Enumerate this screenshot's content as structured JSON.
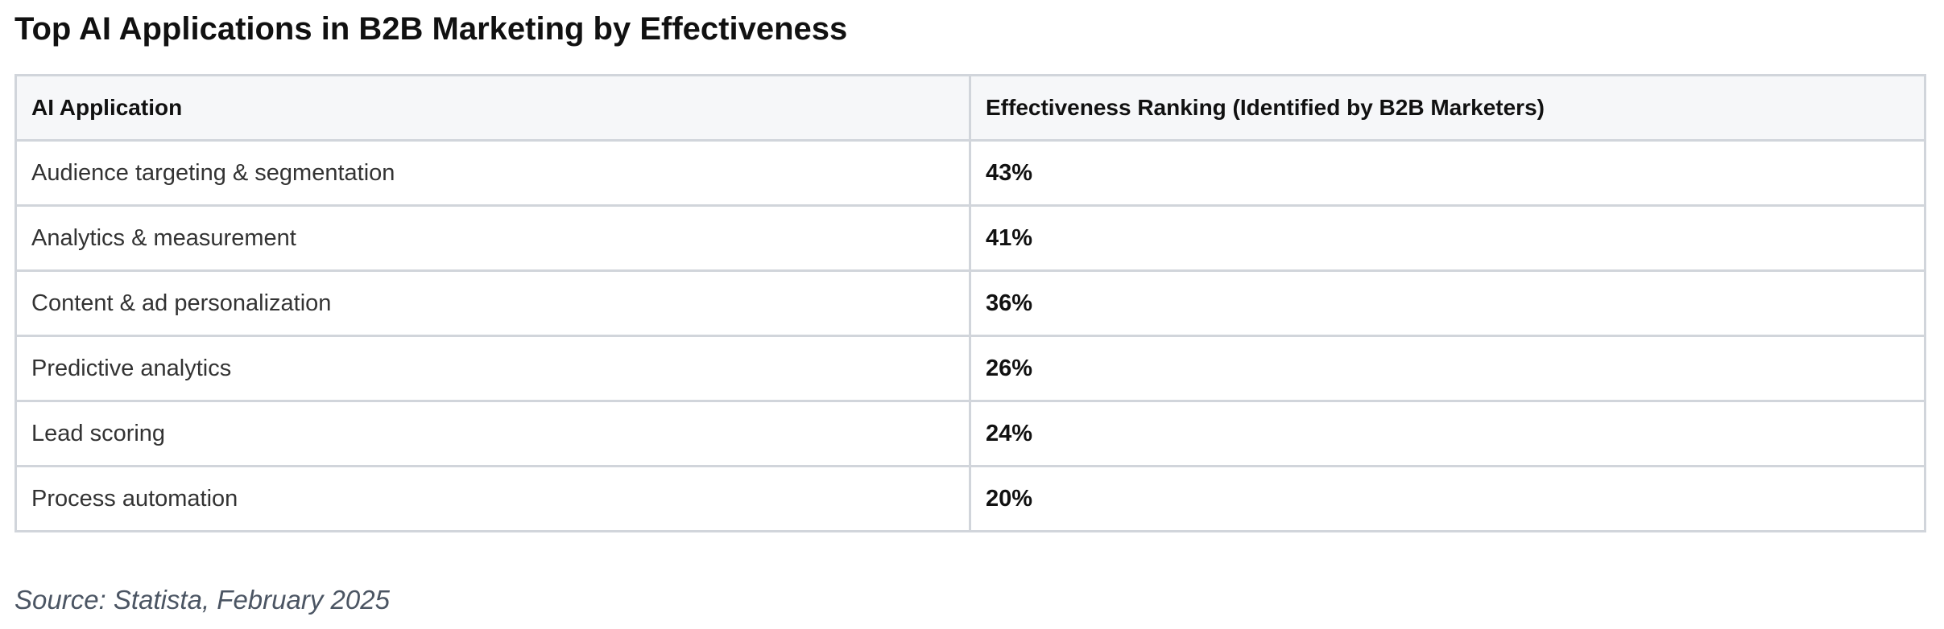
{
  "title": "Top AI Applications in B2B Marketing by Effectiveness",
  "table": {
    "headers": [
      "AI Application",
      "Effectiveness Ranking (Identified by B2B Marketers)"
    ],
    "rows": [
      {
        "application": "Audience targeting & segmentation",
        "ranking": "43%"
      },
      {
        "application": "Analytics & measurement",
        "ranking": "41%"
      },
      {
        "application": "Content & ad personalization",
        "ranking": "36%"
      },
      {
        "application": "Predictive analytics",
        "ranking": "26%"
      },
      {
        "application": "Lead scoring",
        "ranking": "24%"
      },
      {
        "application": "Process automation",
        "ranking": "20%"
      }
    ]
  },
  "source": "Source: Statista, February 2025",
  "colors": {
    "header_background": "#f6f7f9",
    "border": "#d1d5db",
    "title_text": "#111111",
    "body_text": "#333333",
    "source_text": "#4b5563"
  }
}
